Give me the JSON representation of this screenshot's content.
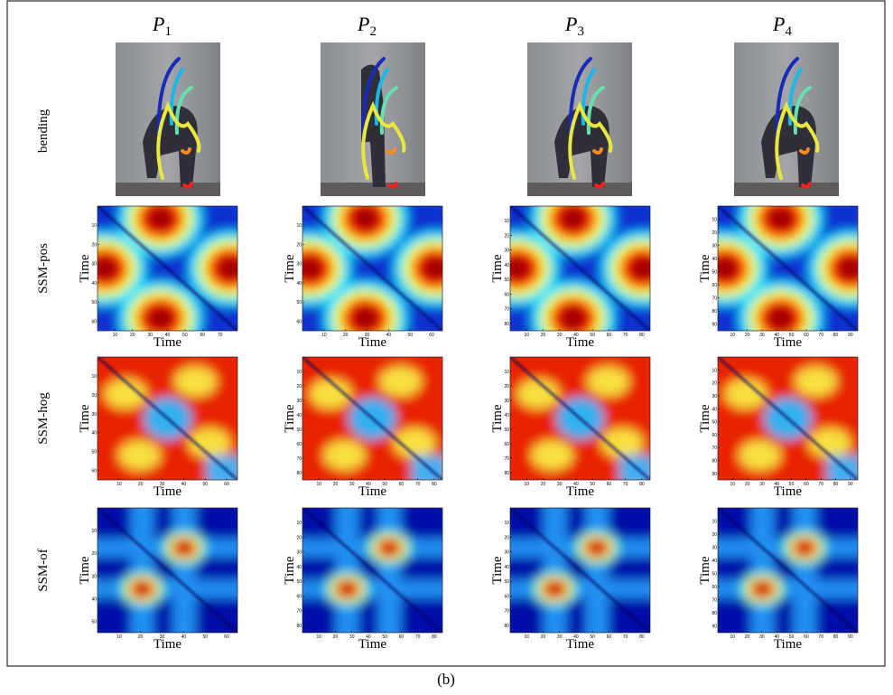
{
  "columns": [
    {
      "letter": "P",
      "sub": "1"
    },
    {
      "letter": "P",
      "sub": "2"
    },
    {
      "letter": "P",
      "sub": "3"
    },
    {
      "letter": "P",
      "sub": "4"
    }
  ],
  "rows": [
    "bending",
    "SSM-pos",
    "SSM-hog",
    "SSM-of"
  ],
  "panels": [
    [
      {
        "x_label": "Time",
        "y_label": "Time",
        "xlim": [
          0,
          80
        ],
        "xticks": [
          10,
          20,
          30,
          40,
          50,
          60,
          70
        ],
        "ylim": [
          0,
          65
        ],
        "yticks": [
          10,
          20,
          30,
          40,
          50,
          60
        ]
      },
      {
        "x_label": "Time",
        "y_label": "Time",
        "xlim": [
          0,
          65
        ],
        "xticks": [
          10,
          20,
          30,
          40,
          50,
          60
        ],
        "ylim": [
          0,
          65
        ],
        "yticks": [
          10,
          20,
          30,
          40,
          50,
          60
        ]
      },
      {
        "x_label": "Time",
        "y_label": "Time",
        "xlim": [
          0,
          85
        ],
        "xticks": [
          10,
          20,
          30,
          40,
          50,
          60,
          70,
          80
        ],
        "ylim": [
          0,
          85
        ],
        "yticks": [
          10,
          20,
          30,
          40,
          50,
          60,
          70,
          80
        ]
      },
      {
        "x_label": "Time",
        "y_label": "Time",
        "xlim": [
          0,
          95
        ],
        "xticks": [
          10,
          20,
          30,
          40,
          50,
          60,
          70,
          80,
          90
        ],
        "ylim": [
          0,
          95
        ],
        "yticks": [
          10,
          20,
          30,
          40,
          50,
          60,
          70,
          80,
          90
        ]
      }
    ],
    [
      {
        "x_label": "Time",
        "y_label": "Time",
        "xlim": [
          0,
          65
        ],
        "xticks": [
          10,
          20,
          30,
          40,
          50,
          60
        ],
        "ylim": [
          0,
          65
        ],
        "yticks": [
          10,
          20,
          30,
          40,
          50,
          60
        ]
      },
      {
        "x_label": "Time",
        "y_label": "Time",
        "xlim": [
          0,
          85
        ],
        "xticks": [
          10,
          20,
          30,
          40,
          50,
          60,
          70,
          80
        ],
        "ylim": [
          0,
          85
        ],
        "yticks": [
          10,
          20,
          30,
          40,
          50,
          60,
          70,
          80
        ]
      },
      {
        "x_label": "Time",
        "y_label": "Time",
        "xlim": [
          0,
          85
        ],
        "xticks": [
          10,
          20,
          30,
          40,
          50,
          60,
          70,
          80
        ],
        "ylim": [
          0,
          85
        ],
        "yticks": [
          10,
          20,
          30,
          40,
          50,
          60,
          70,
          80
        ]
      },
      {
        "x_label": "Time",
        "y_label": "Time",
        "xlim": [
          0,
          95
        ],
        "xticks": [
          10,
          20,
          30,
          40,
          50,
          60,
          70,
          80,
          90
        ],
        "ylim": [
          0,
          95
        ],
        "yticks": [
          10,
          20,
          30,
          40,
          50,
          60,
          70,
          80,
          90
        ]
      }
    ],
    [
      {
        "x_label": "Time",
        "y_label": "Time",
        "xlim": [
          0,
          65
        ],
        "xticks": [
          10,
          20,
          30,
          40,
          50,
          60
        ],
        "ylim": [
          0,
          55
        ],
        "yticks": [
          10,
          20,
          30,
          40,
          50
        ]
      },
      {
        "x_label": "Time",
        "y_label": "Time",
        "xlim": [
          0,
          85
        ],
        "xticks": [
          10,
          20,
          30,
          40,
          50,
          60,
          70,
          80
        ],
        "ylim": [
          0,
          85
        ],
        "yticks": [
          10,
          20,
          30,
          40,
          50,
          60,
          70,
          80
        ]
      },
      {
        "x_label": "Time",
        "y_label": "Time",
        "xlim": [
          0,
          85
        ],
        "xticks": [
          10,
          20,
          30,
          40,
          50,
          60,
          70,
          80
        ],
        "ylim": [
          0,
          85
        ],
        "yticks": [
          10,
          20,
          30,
          40,
          50,
          60,
          70,
          80
        ]
      },
      {
        "x_label": "Time",
        "y_label": "Time",
        "xlim": [
          0,
          95
        ],
        "xticks": [
          10,
          20,
          30,
          40,
          50,
          60,
          70,
          80,
          90
        ],
        "ylim": [
          0,
          95
        ],
        "yticks": [
          10,
          20,
          30,
          40,
          50,
          60,
          70,
          80,
          90
        ]
      }
    ]
  ],
  "caption": "(b)"
}
